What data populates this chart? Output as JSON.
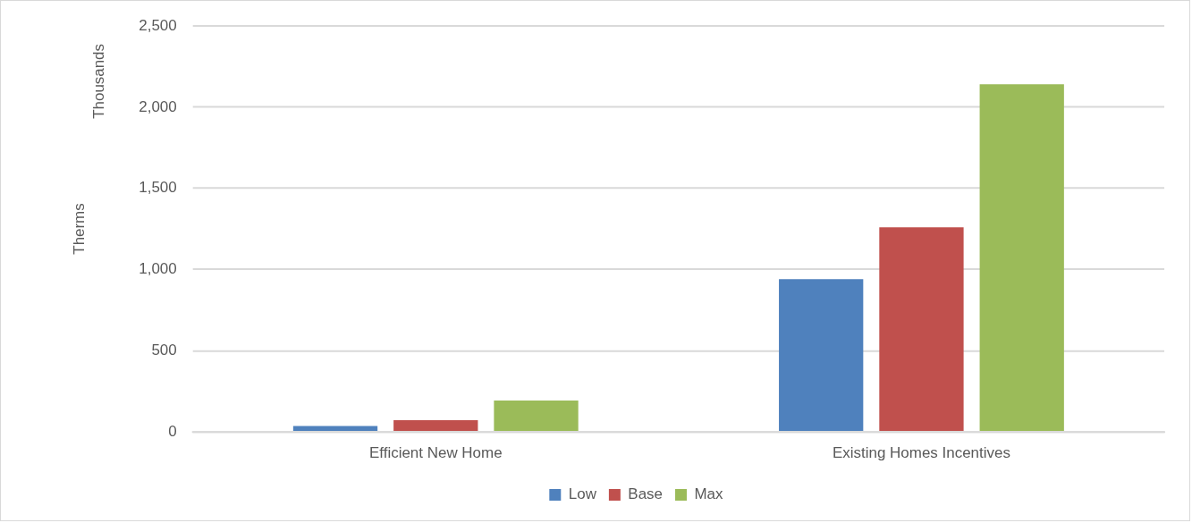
{
  "chart_data": {
    "type": "bar",
    "ylabel": "Therms",
    "annotations": [
      "Thousands"
    ],
    "categories": [
      "Efficient New Home",
      "Existing Homes Incentives"
    ],
    "series": [
      {
        "name": "Low",
        "color": "#4f81bd",
        "values": [
          36,
          940
        ]
      },
      {
        "name": "Base",
        "color": "#c0504d",
        "values": [
          71,
          1260
        ]
      },
      {
        "name": "Max",
        "color": "#9bbb59",
        "values": [
          193,
          2141
        ]
      }
    ],
    "ylim": [
      0,
      2500
    ],
    "yticks": [
      0,
      500,
      {
        "value": 1000,
        "label": "1,000"
      },
      {
        "value": 1500,
        "label": "1,500"
      },
      {
        "value": 2000,
        "label": "2,000"
      },
      {
        "value": 2500,
        "label": "2,500"
      }
    ],
    "grid": "y",
    "legend": "bottom"
  }
}
